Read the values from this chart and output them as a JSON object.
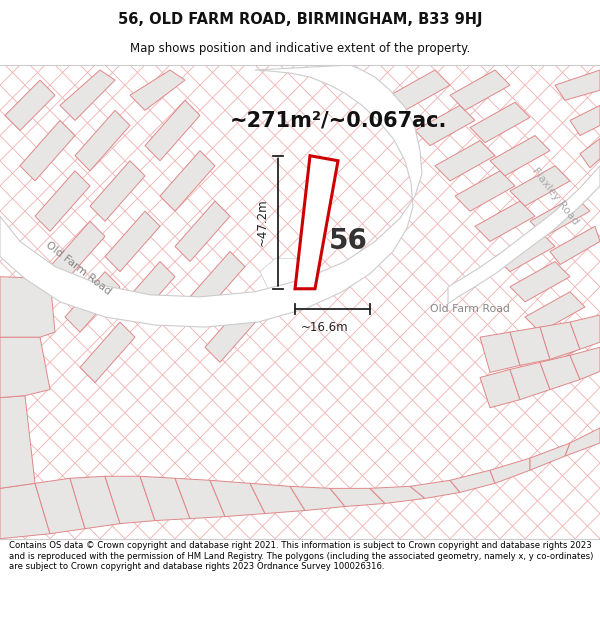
{
  "title_line1": "56, OLD FARM ROAD, BIRMINGHAM, B33 9HJ",
  "title_line2": "Map shows position and indicative extent of the property.",
  "area_text": "~271m²/~0.067ac.",
  "dim_width": "~16.6m",
  "dim_height": "~47.2m",
  "label_56": "56",
  "road_label_left": "Old Farm Road",
  "road_label_right": "Old Farm Road",
  "flaxley_road": "Flaxley Road",
  "footer_text": "Contains OS data © Crown copyright and database right 2021. This information is subject to Crown copyright and database rights 2023 and is reproduced with the permission of HM Land Registry. The polygons (including the associated geometry, namely x, y co-ordinates) are subject to Crown copyright and database rights 2023 Ordnance Survey 100026316.",
  "map_bg": "#f7f4f4",
  "road_color": "#ffffff",
  "plot_fill": "#f0f0f0",
  "plot_border_highlight": "#cc0000",
  "plot_border_other": "#e08888",
  "grid_line_color": "#f0b0b0",
  "bg_white": "#ffffff"
}
